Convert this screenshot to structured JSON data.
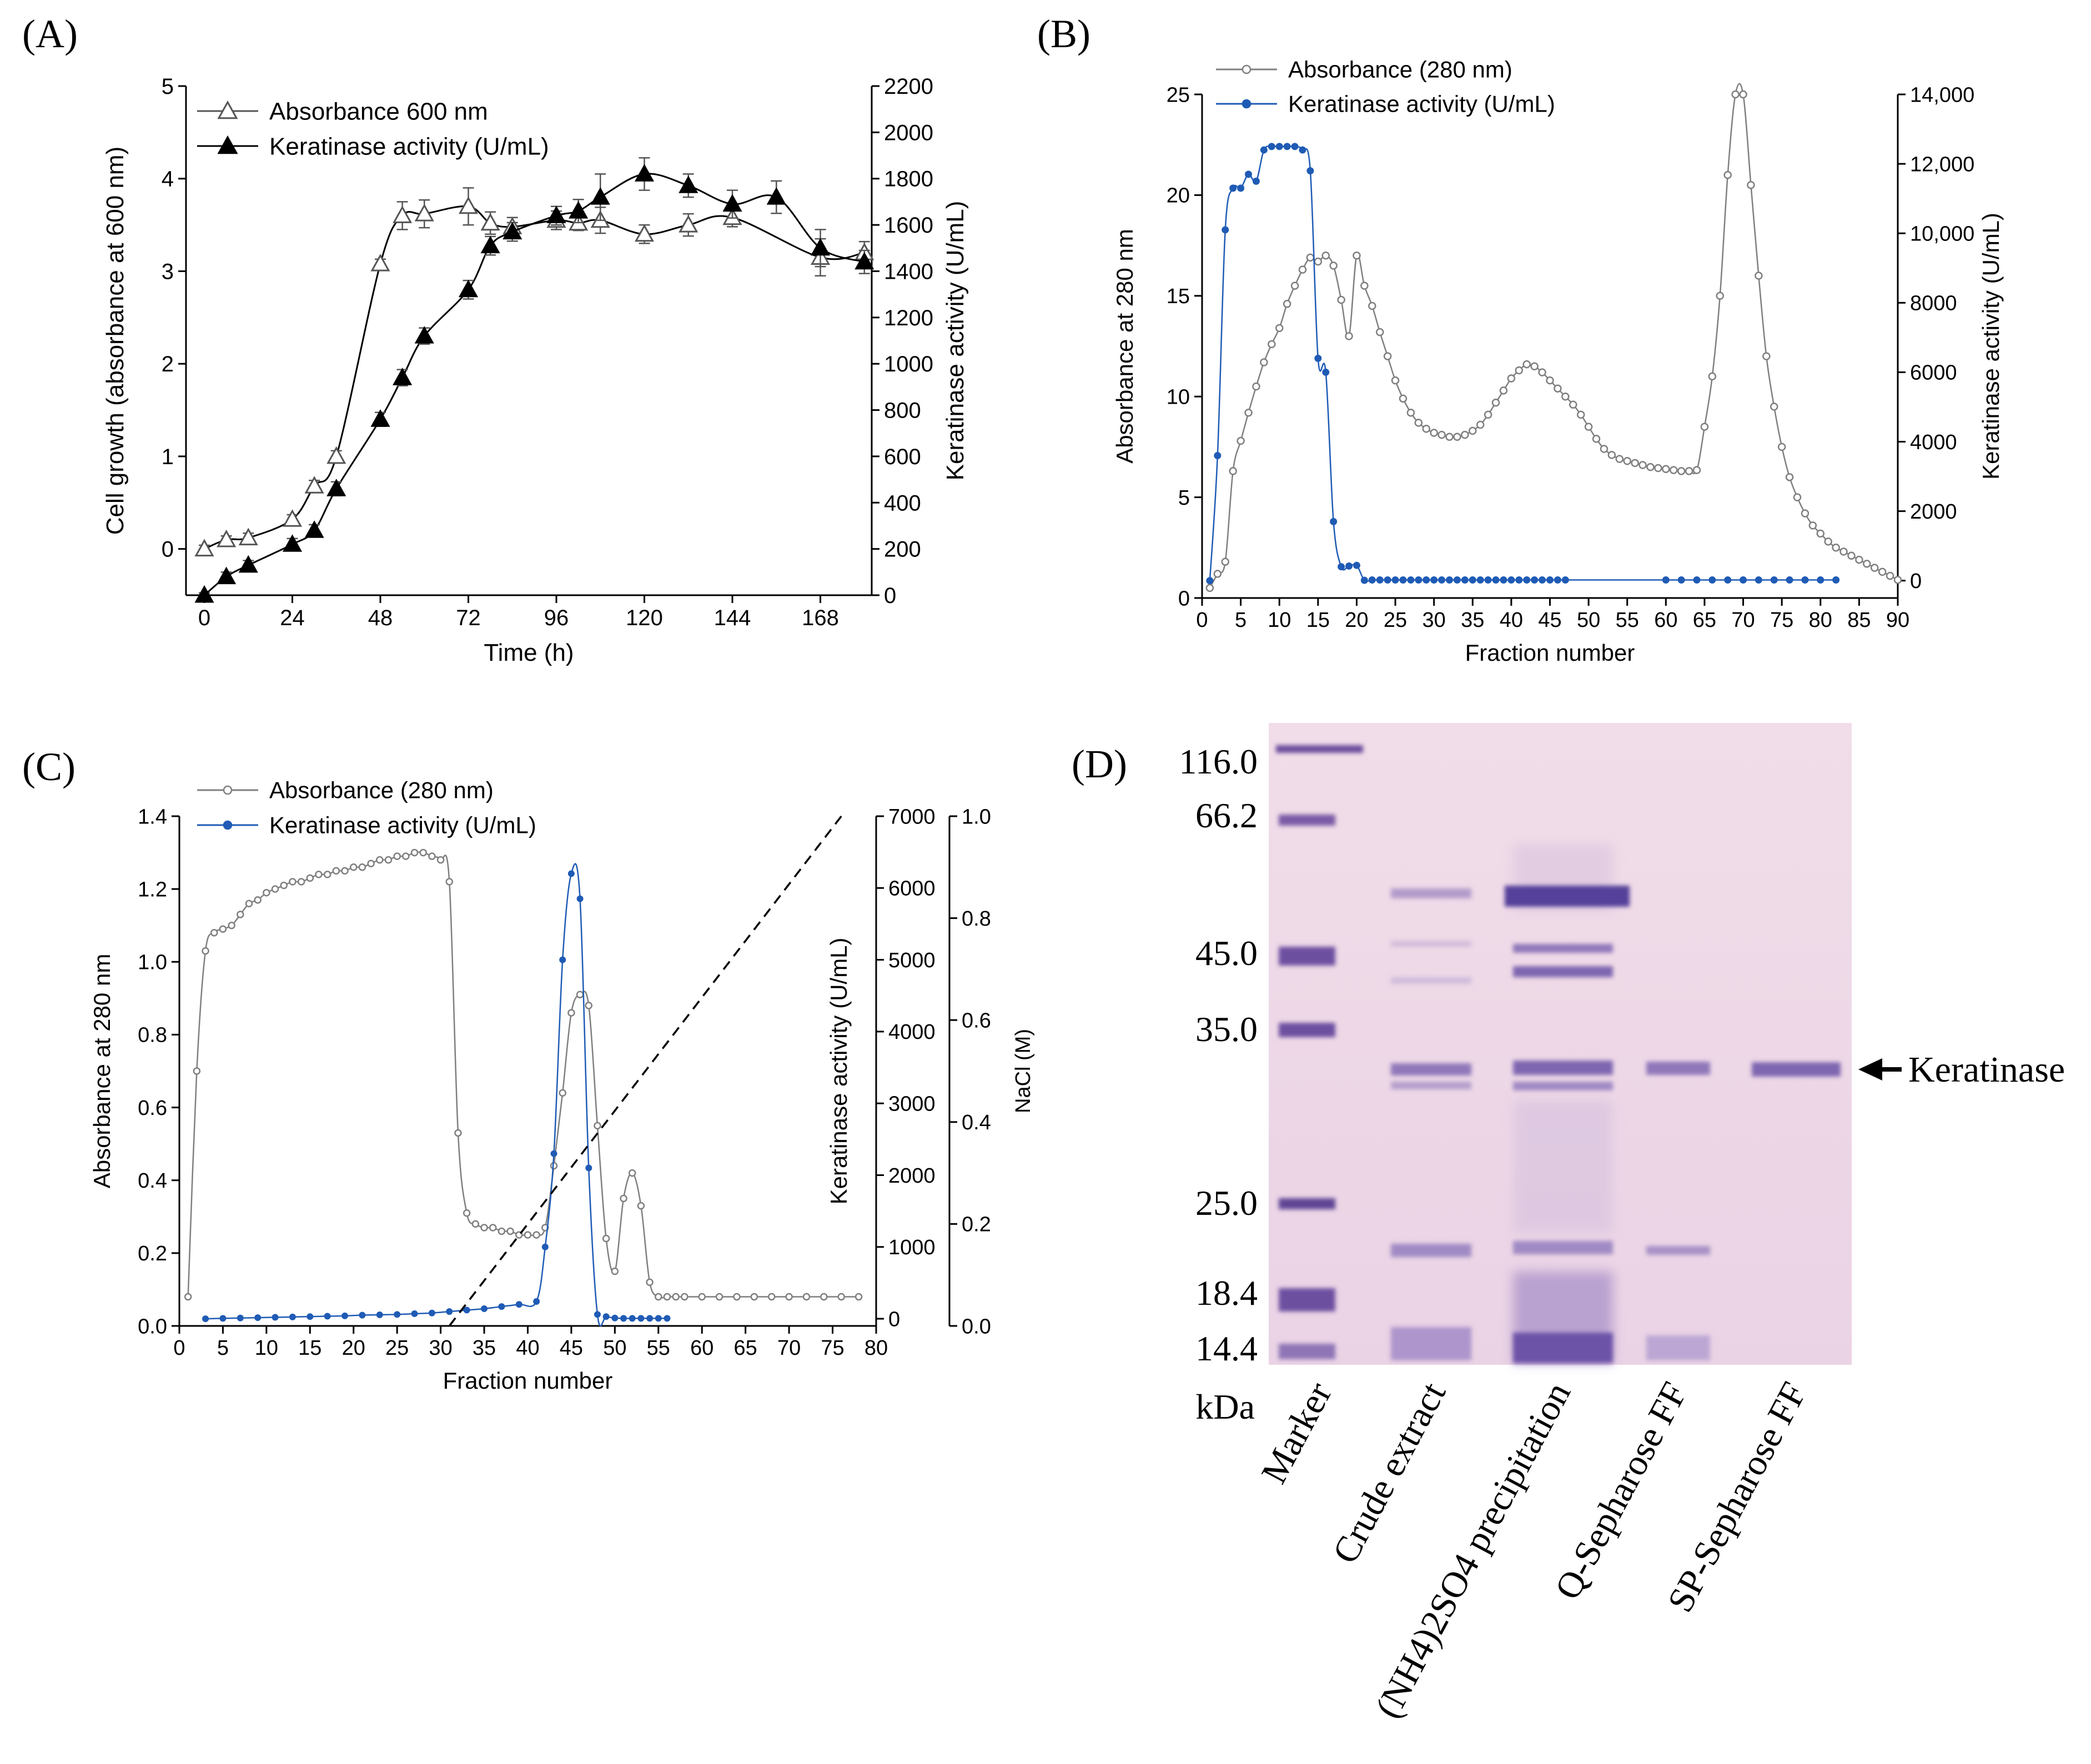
{
  "colors": {
    "axis": "#000000",
    "gray": "#7f7f7f",
    "blue": "#1f5bb5",
    "dash": "#000000"
  },
  "panels": {
    "A": {
      "label": "(A)"
    },
    "B": {
      "label": "(B)"
    },
    "C": {
      "label": "(C)"
    },
    "D": {
      "label": "(D)"
    }
  },
  "gel": {
    "mw_values": [
      "116.0",
      "66.2",
      "45.0",
      "35.0",
      "25.0",
      "18.4",
      "14.4"
    ],
    "unit": "kDa",
    "lanes": [
      "Marker",
      "Crude extract",
      "(NH4)2SO4 precipitation",
      "Q-Sepharose FF",
      "SP-Sepharose FF"
    ],
    "arrow_label": "Keratinase"
  },
  "chart_data": [
    {
      "panel": "A",
      "type": "line",
      "xlabel": "Time (h)",
      "ylabel": "Cell growth (absorbance at 600 nm)",
      "y2label": "Keratinase activity (U/mL)",
      "xlim": [
        -5,
        182
      ],
      "ylim": [
        -0.5,
        5
      ],
      "y2lim": [
        0,
        2200
      ],
      "xticks": [
        0,
        24,
        48,
        72,
        96,
        120,
        144,
        168
      ],
      "yticks": [
        0,
        1,
        2,
        3,
        4,
        5
      ],
      "y2ticks": [
        0,
        200,
        400,
        600,
        800,
        1000,
        1200,
        1400,
        1600,
        1800,
        2000,
        2200
      ],
      "legend": [
        "Absorbance 600 nm",
        "Keratinase activity (U/mL)"
      ],
      "series": [
        {
          "name": "Absorbance 600 nm",
          "axis": "left",
          "marker": "triangle-open",
          "x": [
            0,
            6,
            12,
            24,
            30,
            36,
            48,
            54,
            60,
            72,
            78,
            84,
            96,
            102,
            108,
            120,
            132,
            144,
            168,
            180
          ],
          "y": [
            0,
            0.1,
            0.12,
            0.32,
            0.68,
            1.0,
            3.08,
            3.6,
            3.62,
            3.7,
            3.52,
            3.48,
            3.55,
            3.52,
            3.55,
            3.4,
            3.5,
            3.58,
            3.15,
            3.2
          ],
          "err": [
            0.04,
            0.04,
            0.05,
            0.05,
            0.06,
            0.06,
            0.05,
            0.15,
            0.15,
            0.2,
            0.12,
            0.1,
            0.1,
            0.08,
            0.14,
            0.1,
            0.12,
            0.1,
            0.2,
            0.12
          ]
        },
        {
          "name": "Keratinase activity (U/mL)",
          "axis": "right",
          "marker": "triangle-filled",
          "x": [
            0,
            6,
            12,
            24,
            30,
            36,
            48,
            54,
            60,
            72,
            78,
            84,
            96,
            102,
            108,
            120,
            132,
            144,
            156,
            168,
            180
          ],
          "y": [
            0,
            80,
            130,
            220,
            280,
            460,
            760,
            940,
            1120,
            1320,
            1510,
            1570,
            1640,
            1660,
            1720,
            1820,
            1770,
            1690,
            1720,
            1500,
            1440
          ],
          "err": [
            10,
            20,
            20,
            25,
            25,
            30,
            30,
            35,
            35,
            40,
            40,
            40,
            40,
            50,
            100,
            70,
            50,
            60,
            70,
            80,
            50
          ]
        }
      ]
    },
    {
      "panel": "B",
      "type": "line",
      "xlabel": "Fraction number",
      "ylabel": "Absorbance at 280 nm",
      "y2label": "Keratinase activity (U/mL)",
      "xlim": [
        0,
        90
      ],
      "ylim": [
        0,
        25
      ],
      "y2lim": [
        -500,
        14000
      ],
      "xticks": [
        0,
        5,
        10,
        15,
        20,
        25,
        30,
        35,
        40,
        45,
        50,
        55,
        60,
        65,
        70,
        75,
        80,
        85,
        90
      ],
      "yticks": [
        0,
        5,
        10,
        15,
        20,
        25
      ],
      "y2ticks": [
        0,
        2000,
        4000,
        6000,
        8000,
        10000,
        12000,
        14000
      ],
      "y2ticklabels": [
        "0",
        "2000",
        "4000",
        "6000",
        "8000",
        "10,000",
        "12,000",
        "14,000"
      ],
      "legend": [
        "Absorbance (280 nm)",
        "Keratinase activity (U/mL)"
      ],
      "series": [
        {
          "name": "Absorbance (280 nm)",
          "axis": "left",
          "marker": "circle-open",
          "x": [
            1,
            2,
            3,
            4,
            5,
            6,
            7,
            8,
            9,
            10,
            11,
            12,
            13,
            14,
            15,
            16,
            17,
            18,
            19,
            20,
            21,
            22,
            23,
            24,
            25,
            26,
            27,
            28,
            29,
            30,
            31,
            32,
            33,
            34,
            35,
            36,
            37,
            38,
            39,
            40,
            41,
            42,
            43,
            44,
            45,
            46,
            47,
            48,
            49,
            50,
            51,
            52,
            53,
            54,
            55,
            56,
            57,
            58,
            59,
            60,
            61,
            62,
            63,
            64,
            65,
            66,
            67,
            68,
            69,
            70,
            71,
            72,
            73,
            74,
            75,
            76,
            77,
            78,
            79,
            80,
            81,
            82,
            83,
            84,
            85,
            86,
            87,
            88,
            89,
            90
          ],
          "y": [
            0.5,
            1.2,
            1.8,
            6.3,
            7.8,
            9.2,
            10.5,
            11.7,
            12.6,
            13.4,
            14.6,
            15.5,
            16.3,
            16.9,
            16.7,
            17.0,
            16.5,
            14.8,
            13.0,
            17.0,
            15.5,
            14.5,
            13.2,
            12.0,
            10.8,
            9.9,
            9.2,
            8.7,
            8.4,
            8.2,
            8.1,
            8.0,
            8.0,
            8.1,
            8.3,
            8.6,
            9.1,
            9.7,
            10.3,
            10.9,
            11.3,
            11.6,
            11.5,
            11.2,
            10.8,
            10.4,
            10.0,
            9.6,
            9.1,
            8.5,
            7.9,
            7.4,
            7.1,
            6.9,
            6.8,
            6.7,
            6.6,
            6.5,
            6.45,
            6.4,
            6.35,
            6.3,
            6.3,
            6.35,
            8.5,
            11.0,
            15.0,
            21.0,
            25.0,
            25.0,
            20.5,
            16.0,
            12.0,
            9.5,
            7.5,
            6.0,
            5.0,
            4.2,
            3.6,
            3.2,
            2.8,
            2.5,
            2.3,
            2.1,
            1.9,
            1.7,
            1.5,
            1.3,
            1.1,
            0.9
          ]
        },
        {
          "name": "Keratinase activity (U/mL)",
          "axis": "right",
          "marker": "circle-filled",
          "x": [
            1,
            2,
            3,
            4,
            5,
            6,
            7,
            8,
            9,
            10,
            11,
            12,
            13,
            14,
            15,
            16,
            17,
            18,
            19,
            20,
            21,
            22,
            23,
            24,
            25,
            26,
            27,
            28,
            29,
            30,
            31,
            32,
            33,
            34,
            35,
            36,
            37,
            38,
            39,
            40,
            41,
            42,
            43,
            44,
            45,
            46,
            47,
            60,
            62,
            64,
            66,
            68,
            70,
            72,
            74,
            76,
            78,
            80,
            82
          ],
          "y": [
            0,
            3600,
            10100,
            11300,
            11300,
            11700,
            11500,
            12400,
            12500,
            12500,
            12500,
            12500,
            12400,
            11800,
            6400,
            6000,
            1700,
            400,
            420,
            440,
            10,
            20,
            20,
            20,
            20,
            20,
            20,
            20,
            20,
            20,
            20,
            20,
            20,
            20,
            20,
            20,
            20,
            20,
            20,
            20,
            20,
            20,
            20,
            20,
            20,
            20,
            20,
            20,
            20,
            20,
            20,
            20,
            20,
            20,
            20,
            20,
            20,
            20,
            20
          ]
        }
      ]
    },
    {
      "panel": "C",
      "type": "line",
      "xlabel": "Fraction number",
      "ylabel": "Absorbance at 280 nm",
      "y2label": "Keratinase activity (U/mL)",
      "y3label": "NaCl (M)",
      "xlim": [
        0,
        80
      ],
      "ylim": [
        0,
        1.4
      ],
      "y2lim": [
        -100,
        7000
      ],
      "y3lim": [
        0,
        1.0
      ],
      "xticks": [
        0,
        5,
        10,
        15,
        20,
        25,
        30,
        35,
        40,
        45,
        50,
        55,
        60,
        65,
        70,
        75,
        80
      ],
      "yticks": [
        0.0,
        0.2,
        0.4,
        0.6,
        0.8,
        1.0,
        1.2,
        1.4
      ],
      "yticklabels": [
        "0.0",
        "0.2",
        "0.4",
        "0.6",
        "0.8",
        "1.0",
        "1.2",
        "1.4"
      ],
      "y2ticks": [
        0,
        1000,
        2000,
        3000,
        4000,
        5000,
        6000,
        7000
      ],
      "y3ticks": [
        0.0,
        0.2,
        0.4,
        0.6,
        0.8,
        1.0
      ],
      "y3ticklabels": [
        "0.0",
        "0.2",
        "0.4",
        "0.6",
        "0.8",
        "1.0"
      ],
      "legend": [
        "Absorbance (280 nm)",
        "Keratinase activity (U/mL)"
      ],
      "series": [
        {
          "name": "Absorbance (280 nm)",
          "axis": "left",
          "marker": "circle-open",
          "x": [
            1,
            2,
            3,
            4,
            5,
            6,
            7,
            8,
            9,
            10,
            11,
            12,
            13,
            14,
            15,
            16,
            17,
            18,
            19,
            20,
            21,
            22,
            23,
            24,
            25,
            26,
            27,
            28,
            29,
            30,
            31,
            32,
            33,
            34,
            35,
            36,
            37,
            38,
            39,
            40,
            41,
            42,
            43,
            44,
            45,
            46,
            47,
            48,
            49,
            50,
            51,
            52,
            53,
            54,
            55,
            56,
            57,
            58,
            60,
            62,
            64,
            66,
            68,
            70,
            72,
            74,
            76,
            78
          ],
          "y": [
            0.08,
            0.7,
            1.03,
            1.08,
            1.09,
            1.1,
            1.13,
            1.16,
            1.17,
            1.19,
            1.2,
            1.21,
            1.22,
            1.22,
            1.23,
            1.24,
            1.24,
            1.25,
            1.25,
            1.26,
            1.26,
            1.27,
            1.28,
            1.28,
            1.29,
            1.29,
            1.3,
            1.3,
            1.29,
            1.28,
            1.22,
            0.53,
            0.31,
            0.28,
            0.27,
            0.27,
            0.26,
            0.26,
            0.25,
            0.25,
            0.25,
            0.27,
            0.44,
            0.64,
            0.86,
            0.91,
            0.88,
            0.55,
            0.24,
            0.15,
            0.35,
            0.42,
            0.33,
            0.12,
            0.08,
            0.08,
            0.08,
            0.08,
            0.08,
            0.08,
            0.08,
            0.08,
            0.08,
            0.08,
            0.08,
            0.08,
            0.08,
            0.08
          ]
        },
        {
          "name": "Keratinase activity (U/mL)",
          "axis": "right",
          "marker": "circle-filled",
          "x": [
            3,
            5,
            7,
            9,
            11,
            13,
            15,
            17,
            19,
            21,
            23,
            25,
            27,
            29,
            31,
            33,
            35,
            37,
            39,
            41,
            42,
            43,
            44,
            45,
            46,
            47,
            48,
            49,
            50,
            51,
            52,
            53,
            54,
            55,
            56
          ],
          "y": [
            0,
            5,
            10,
            15,
            20,
            25,
            30,
            35,
            40,
            50,
            55,
            60,
            70,
            80,
            100,
            120,
            140,
            170,
            200,
            240,
            1000,
            2300,
            5000,
            6200,
            5850,
            2100,
            60,
            30,
            10,
            5,
            5,
            5,
            5,
            5,
            5
          ]
        },
        {
          "name": "NaCl gradient",
          "axis": "right2",
          "marker": "none",
          "style": "dashed",
          "x": [
            31,
            76
          ],
          "y": [
            0,
            1.0
          ]
        }
      ]
    }
  ]
}
